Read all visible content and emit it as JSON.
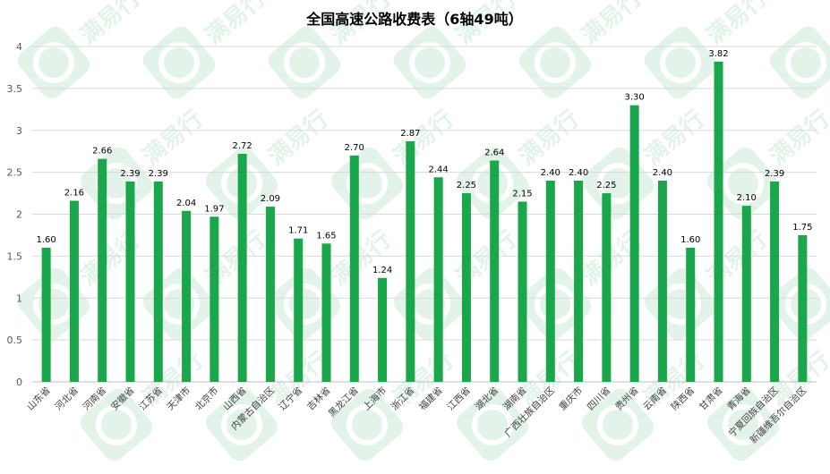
{
  "chart_data": {
    "type": "bar",
    "title": "全国高速公路收费表（6轴49吨）",
    "xlabel": "",
    "ylabel": "",
    "ylim": [
      0,
      4
    ],
    "yticks": [
      "0",
      "0.5",
      "1",
      "1.5",
      "2",
      "2.5",
      "3",
      "3.5",
      "4"
    ],
    "grid": true,
    "legend": "none",
    "bar_color": "#1aa64a",
    "categories": [
      "山东省",
      "河北省",
      "河南省",
      "安徽省",
      "江苏省",
      "天津市",
      "北京市",
      "山西省",
      "内蒙古自治区",
      "辽宁省",
      "吉林省",
      "黑龙江省",
      "上海市",
      "浙江省",
      "福建省",
      "江西省",
      "湖北省",
      "湖南省",
      "广西壮族自治区",
      "重庆市",
      "四川省",
      "贵州省",
      "云南省",
      "陕西省",
      "甘肃省",
      "青海省",
      "宁夏回族自治区",
      "新疆维吾尔自治区"
    ],
    "values": [
      1.6,
      2.16,
      2.66,
      2.39,
      2.39,
      2.04,
      1.97,
      2.72,
      2.09,
      1.71,
      1.65,
      2.7,
      1.24,
      2.87,
      2.44,
      2.25,
      2.64,
      2.15,
      2.4,
      2.4,
      2.25,
      3.3,
      2.4,
      1.6,
      3.82,
      2.1,
      2.39,
      1.75
    ],
    "value_labels": [
      "1.60",
      "2.16",
      "2.66",
      "2.39",
      "2.39",
      "2.04",
      "1.97",
      "2.72",
      "2.09",
      "1.71",
      "1.65",
      "2.70",
      "1.24",
      "2.87",
      "2.44",
      "2.25",
      "2.64",
      "2.15",
      "2.40",
      "2.40",
      "2.25",
      "3.30",
      "2.40",
      "1.60",
      "3.82",
      "2.10",
      "2.39",
      "1.75"
    ]
  },
  "watermark": {
    "text": "满易行",
    "color": "#2eaa5c"
  }
}
